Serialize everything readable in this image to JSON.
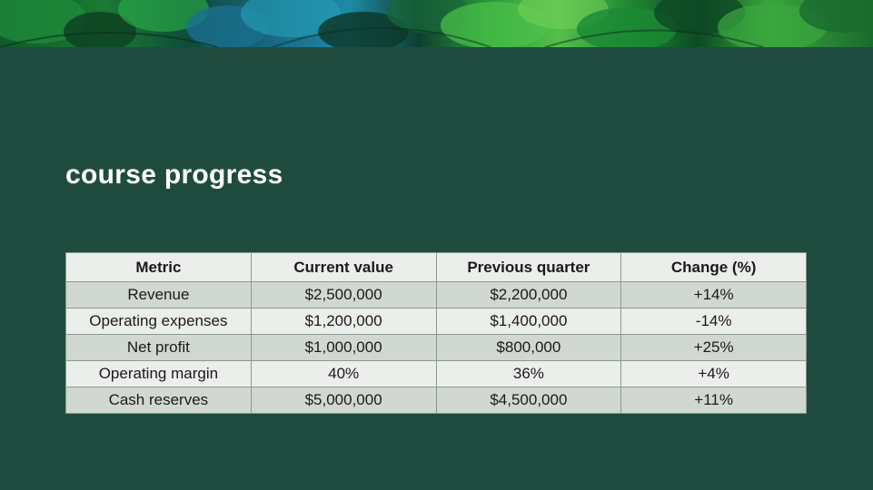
{
  "slide": {
    "title": "course progress"
  },
  "table": {
    "headers": [
      "Metric",
      "Current value",
      "Previous quarter",
      "Change (%)"
    ],
    "rows": [
      [
        "Revenue",
        "$2,500,000",
        "$2,200,000",
        "+14%"
      ],
      [
        "Operating expenses",
        "$1,200,000",
        "$1,400,000",
        "-14%"
      ],
      [
        "Net profit",
        "$1,000,000",
        "$800,000",
        "+25%"
      ],
      [
        "Operating margin",
        "40%",
        "36%",
        "+4%"
      ],
      [
        "Cash reserves",
        "$5,000,000",
        "$4,500,000",
        "+11%"
      ]
    ]
  },
  "colors": {
    "background": "#1f4b3e",
    "header_row": "#eceeeb",
    "row_shaded": "#d1d8d1",
    "row_light": "#eceeeb",
    "title_text": "#ffffff"
  }
}
